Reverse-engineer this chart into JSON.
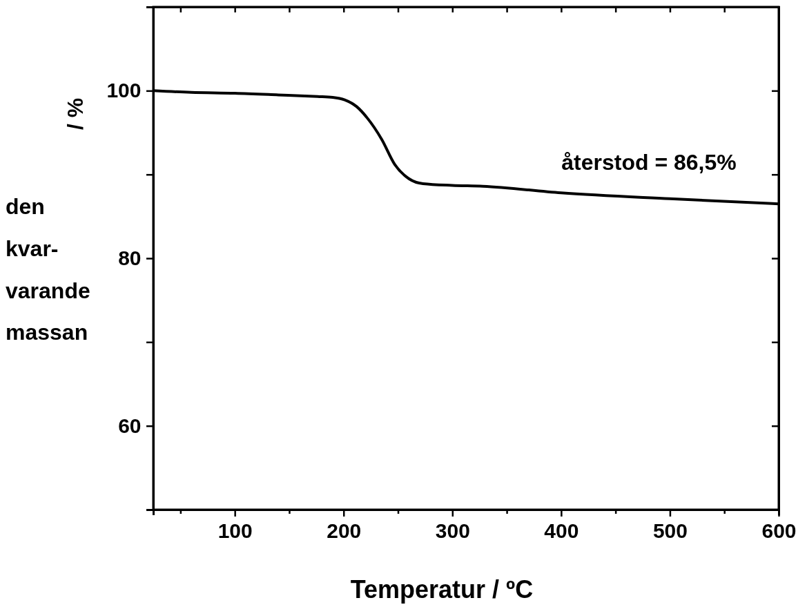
{
  "chart_data": {
    "type": "line",
    "xlabel": "Temperatur  / ºC",
    "ylabel": "/ %",
    "x": [
      25,
      60,
      100,
      140,
      176,
      190,
      201,
      212,
      222,
      235,
      247,
      260,
      273,
      300,
      328,
      400,
      500,
      600
    ],
    "series": [
      {
        "color": "#000000",
        "values": [
          100,
          99.8,
          99.7,
          99.5,
          99.3,
          99.2,
          98.9,
          98.1,
          96.7,
          94.2,
          91.2,
          89.5,
          88.9,
          88.7,
          88.6,
          87.8,
          87.1,
          86.5
        ]
      }
    ],
    "xlim": [
      25,
      600
    ],
    "ylim": [
      50,
      110
    ],
    "xticks": [
      {
        "value": 50,
        "label": null
      },
      100,
      {
        "value": 150,
        "label": null
      },
      200,
      {
        "value": 250,
        "label": null
      },
      300,
      {
        "value": 350,
        "label": null
      },
      400,
      {
        "value": 450,
        "label": null
      },
      500,
      {
        "value": 550,
        "label": null
      },
      600
    ],
    "yticks": [
      {
        "value": 50,
        "label": null
      },
      60,
      {
        "value": 70,
        "label": null
      },
      80,
      {
        "value": 90,
        "label": null
      },
      100,
      {
        "value": 110,
        "label": null
      }
    ],
    "annotations": [
      "återstod = 86,5%",
      "den kvar-varande massan"
    ],
    "grid": false,
    "marker": "none",
    "line_style": "solid"
  }
}
